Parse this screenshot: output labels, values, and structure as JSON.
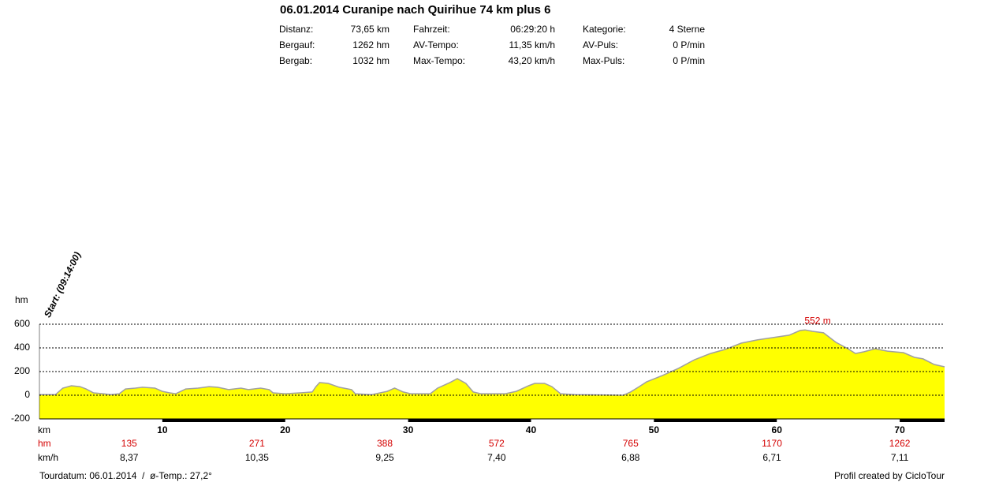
{
  "header": {
    "title": "06.01.2014 Curanipe nach Quirihue 74 km plus 6",
    "stats": [
      [
        [
          "Distanz:",
          "73,65 km"
        ],
        [
          "Fahrzeit:",
          "06:29:20 h"
        ],
        [
          "Kategorie:",
          "4 Sterne"
        ]
      ],
      [
        [
          "Bergauf:",
          "1262 hm"
        ],
        [
          "AV-Tempo:",
          "11,35 km/h"
        ],
        [
          "AV-Puls:",
          "0 P/min"
        ]
      ],
      [
        [
          "Bergab:",
          "1032 hm"
        ],
        [
          "Max-Tempo:",
          "43,20 km/h"
        ],
        [
          "Max-Puls:",
          "0 P/min"
        ]
      ]
    ]
  },
  "chart_data": {
    "type": "area",
    "y_axis_label": "hm",
    "x_axis_label": "km",
    "start_label": "Start: (09:14:00)",
    "color": "#ffff00",
    "line_color": "#a0a0a0",
    "x": [
      0,
      1.3,
      1.9,
      2.6,
      3.3,
      3.8,
      4.4,
      5.2,
      5.8,
      6.5,
      7.0,
      7.8,
      8.4,
      9.4,
      10.0,
      10.6,
      11.1,
      11.9,
      12.9,
      13.8,
      14.5,
      15.4,
      16.4,
      17.0,
      18.0,
      18.7,
      19.0,
      20.0,
      21.2,
      22.2,
      22.5,
      22.8,
      23.5,
      24.4,
      25.4,
      25.7,
      27.0,
      28.3,
      28.9,
      29.6,
      30.2,
      31.8,
      32.4,
      33.4,
      34.0,
      34.7,
      35.3,
      35.9,
      37.9,
      38.8,
      39.8,
      40.3,
      41.1,
      41.7,
      42.4,
      43.6,
      47.5,
      48.1,
      48.8,
      49.4,
      50.7,
      52.0,
      53.3,
      54.6,
      55.8,
      57.1,
      58.4,
      59.7,
      61.0,
      61.9,
      62.3,
      62.9,
      63.8,
      64.8,
      65.8,
      66.4,
      67.1,
      68.0,
      69.0,
      70.3,
      71.2,
      71.9,
      72.8,
      73.65
    ],
    "values": [
      5,
      5,
      60,
      80,
      73,
      53,
      20,
      13,
      5,
      13,
      53,
      60,
      67,
      60,
      33,
      20,
      13,
      53,
      60,
      73,
      67,
      47,
      60,
      47,
      60,
      47,
      20,
      13,
      20,
      27,
      73,
      107,
      100,
      67,
      47,
      13,
      5,
      33,
      60,
      27,
      13,
      13,
      60,
      107,
      140,
      100,
      27,
      13,
      13,
      33,
      80,
      100,
      100,
      73,
      13,
      5,
      0,
      27,
      73,
      113,
      167,
      227,
      300,
      353,
      387,
      440,
      467,
      487,
      507,
      547,
      552,
      540,
      527,
      447,
      393,
      353,
      367,
      393,
      373,
      360,
      320,
      307,
      260,
      240
    ],
    "xlim": [
      0,
      73.65
    ],
    "ylim": [
      -200,
      600
    ],
    "xticks": [
      10,
      20,
      30,
      40,
      50,
      60,
      70
    ],
    "yticks": [
      600,
      400,
      200,
      0,
      -200
    ],
    "grid": true,
    "max_annotation": {
      "x": 62.3,
      "value": 552,
      "label": "552 m"
    },
    "segments": {
      "km": [
        7.3,
        17.7,
        28.1,
        37.2,
        48.1,
        59.6,
        70.0
      ],
      "climb_label": "hm",
      "climb": [
        135,
        271,
        388,
        572,
        765,
        1170,
        1262
      ],
      "speed_label": "km/h",
      "speed": [
        8.37,
        10.35,
        9.25,
        7.4,
        6.88,
        6.71,
        7.11
      ],
      "speed_labels": [
        "8,37",
        "10,35",
        "9,25",
        "7,40",
        "6,88",
        "6,71",
        "7,11"
      ]
    }
  },
  "footer": {
    "left": "Tourdatum: 06.01.2014  /  ø-Temp.: 27,2°",
    "right": "Profil created by CicloTour"
  }
}
